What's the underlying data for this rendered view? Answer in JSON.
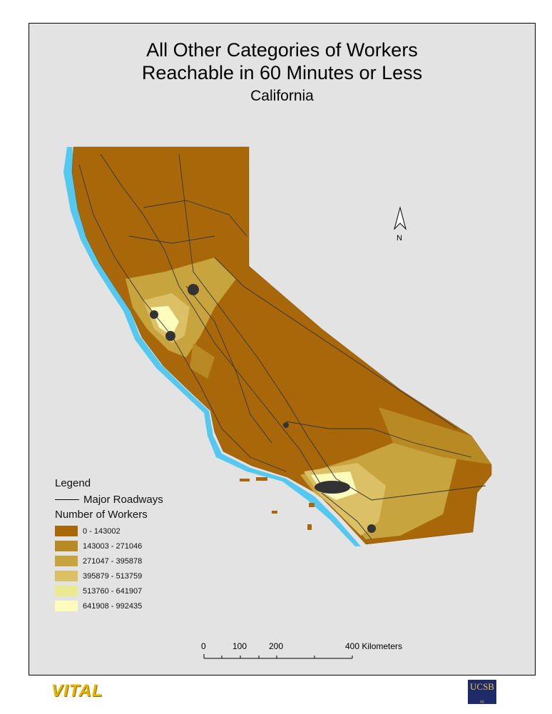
{
  "title": {
    "line1": "All Other Categories of Workers",
    "line2": "Reachable in 60 Minutes or Less",
    "subtitle": "California"
  },
  "north_arrow": {
    "label": "N"
  },
  "legend": {
    "heading": "Legend",
    "roads_label": "Major Roadways",
    "workers_heading": "Number of Workers",
    "classes": [
      {
        "label": "0 - 143002",
        "color": "#a8680a"
      },
      {
        "label": "143003 - 271046",
        "color": "#b88a24"
      },
      {
        "label": "271047 - 395878",
        "color": "#c8a43e"
      },
      {
        "label": "395879 - 513759",
        "color": "#dcc066"
      },
      {
        "label": "513760 - 641907",
        "color": "#ecea90"
      },
      {
        "label": "641908 - 992435",
        "color": "#fcfcbc"
      }
    ]
  },
  "scale_bar": {
    "labels": [
      "0",
      "100",
      "200",
      "400 Kilometers"
    ]
  },
  "logos": {
    "left": "VITAL",
    "right": "UCSB"
  },
  "colors": {
    "water": "#55c8f0",
    "roads": "#333333",
    "background": "#e3e3e3"
  }
}
